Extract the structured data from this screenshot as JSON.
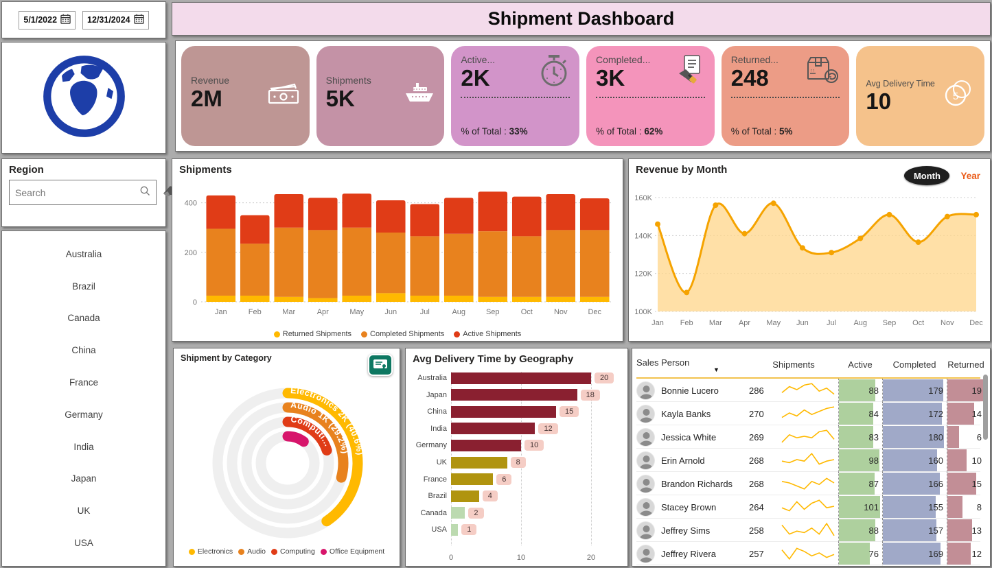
{
  "title": "Shipment Dashboard",
  "filters": {
    "start_date": "5/1/2022",
    "end_date": "12/31/2024"
  },
  "logo_icon": "globe-icon",
  "region_panel": {
    "title": "Region",
    "search_placeholder": "Search",
    "icons": [
      "search-icon",
      "eraser-icon"
    ],
    "countries": [
      "Australia",
      "Brazil",
      "Canada",
      "China",
      "France",
      "Germany",
      "India",
      "Japan",
      "UK",
      "USA"
    ]
  },
  "kpis": [
    {
      "label": "Revenue",
      "value": "2M",
      "icon": "money-icon",
      "bg": "#BE9694",
      "style": "simple"
    },
    {
      "label": "Shipments",
      "value": "5K",
      "icon": "ship-icon",
      "bg": "#C492A6",
      "style": "simple"
    },
    {
      "label": "Active...",
      "value": "2K",
      "icon": "stopwatch-icon",
      "bg": "#D294C9",
      "style": "pct",
      "pct_label": "% of Total :",
      "pct": "33%"
    },
    {
      "label": "Completed...",
      "value": "3K",
      "icon": "deal-icon",
      "bg": "#F494BB",
      "style": "pct",
      "pct_label": "% of Total :",
      "pct": "62%"
    },
    {
      "label": "Returned...",
      "value": "248",
      "icon": "return-box-icon",
      "bg": "#EC9C86",
      "style": "pct",
      "pct_label": "% of Total :",
      "pct": "5%"
    },
    {
      "label": "Avg Delivery Time",
      "value": "10",
      "icon": "coin-icon",
      "bg": "#F5C28B",
      "style": "avg"
    }
  ],
  "chart_data": [
    {
      "id": "shipments",
      "type": "area",
      "title": "Shipments",
      "categories": [
        "Jan",
        "Feb",
        "Mar",
        "Apr",
        "May",
        "Jun",
        "Jul",
        "Aug",
        "Sep",
        "Oct",
        "Nov",
        "Dec"
      ],
      "series": [
        {
          "name": "Returned Shipments",
          "color": "#FFB900",
          "values": [
            25,
            25,
            20,
            15,
            25,
            35,
            25,
            25,
            20,
            20,
            20,
            20
          ]
        },
        {
          "name": "Completed Shipments",
          "color": "#E8821E",
          "values": [
            270,
            210,
            280,
            275,
            275,
            245,
            240,
            250,
            265,
            245,
            270,
            270
          ]
        },
        {
          "name": "Active Shipments",
          "color": "#E03C17",
          "values": [
            135,
            115,
            135,
            130,
            137,
            130,
            130,
            145,
            160,
            160,
            145,
            128
          ]
        }
      ],
      "ylim": [
        0,
        460
      ],
      "yticks": [
        0,
        200,
        400
      ],
      "grid": "dotted-horizontal",
      "legend_position": "bottom"
    },
    {
      "id": "revenue",
      "type": "area",
      "title": "Revenue by Month",
      "toggle": {
        "options": [
          "Month",
          "Year"
        ],
        "selected": "Month",
        "year_color": "#EA5A17"
      },
      "x": [
        "Jan",
        "Feb",
        "Mar",
        "Apr",
        "May",
        "Jun",
        "Jul",
        "Aug",
        "Sep",
        "Oct",
        "Nov",
        "Dec"
      ],
      "values_k": [
        146,
        110,
        156,
        141,
        157,
        133.5,
        131,
        138.5,
        151,
        136.5,
        150,
        151
      ],
      "line_color": "#F5A300",
      "fill_color": "#FFD58A",
      "ylim_k": [
        100,
        160
      ],
      "yticks": [
        "100K",
        "120K",
        "140K",
        "160K"
      ],
      "grid": "dotted-horizontal"
    },
    {
      "id": "category",
      "type": "radial-bar",
      "title": "Shipment by Category",
      "segments": [
        {
          "name": "Electronics",
          "label": "Electronics 2K (40.6%)",
          "pct": 40.6,
          "color": "#FFB900"
        },
        {
          "name": "Audio",
          "label": "Audio 1K (29.2%)",
          "pct": 29.2,
          "color": "#E8821E"
        },
        {
          "name": "Computing",
          "label": "Computi...",
          "pct": 20.0,
          "color": "#E03C17"
        },
        {
          "name": "Office Equipment",
          "label": "",
          "pct": 10.2,
          "color": "#D7156B"
        }
      ],
      "corner_icon": "certificate-icon"
    },
    {
      "id": "geo",
      "type": "bar",
      "title": "Avg Delivery Time by Geography",
      "categories": [
        "Australia",
        "Japan",
        "China",
        "India",
        "Germany",
        "UK",
        "France",
        "Brazil",
        "Canada",
        "USA"
      ],
      "values": [
        20,
        18,
        15,
        12,
        10,
        8,
        6,
        4,
        2,
        1
      ],
      "colors": [
        "#8A2030",
        "#8A2030",
        "#8A2030",
        "#8A2030",
        "#8A2030",
        "#B0940F",
        "#B0940F",
        "#B0940F",
        "#BCDAB0",
        "#BCDAB0"
      ],
      "label_pill_bg": "#F5CDC5",
      "xticks": [
        0,
        10,
        20
      ],
      "xlim": [
        0,
        21
      ]
    },
    {
      "id": "sales",
      "type": "table",
      "columns": [
        "Sales Person",
        "Shipments",
        "Active",
        "Completed",
        "Returned"
      ],
      "bar_colors": {
        "active": "#AED09E",
        "completed": "#A0A9C8",
        "returned": "#C28E96",
        "spark": "#FFB900"
      },
      "rows": [
        {
          "name": "Bonnie Lucero",
          "shipments": 286,
          "active": 88,
          "completed": 179,
          "returned": 19,
          "spark": [
            3,
            7,
            5,
            8,
            9,
            4,
            6,
            2
          ]
        },
        {
          "name": "Kayla Banks",
          "shipments": 270,
          "active": 84,
          "completed": 172,
          "returned": 14,
          "spark": [
            2,
            5,
            3,
            7,
            4,
            6,
            8,
            9
          ]
        },
        {
          "name": "Jessica White",
          "shipments": 269,
          "active": 83,
          "completed": 180,
          "returned": 6,
          "spark": [
            1,
            6,
            4,
            5,
            4,
            8,
            9,
            3
          ]
        },
        {
          "name": "Erin Arnold",
          "shipments": 268,
          "active": 98,
          "completed": 160,
          "returned": 10,
          "spark": [
            4,
            3,
            5,
            4,
            9,
            2,
            4,
            5
          ]
        },
        {
          "name": "Brandon Richards",
          "shipments": 268,
          "active": 87,
          "completed": 166,
          "returned": 15,
          "spark": [
            6,
            5,
            3,
            1,
            6,
            4,
            8,
            5
          ]
        },
        {
          "name": "Stacey Brown",
          "shipments": 264,
          "active": 101,
          "completed": 155,
          "returned": 8,
          "spark": [
            4,
            2,
            8,
            3,
            7,
            9,
            4,
            5
          ]
        },
        {
          "name": "Jeffrey Sims",
          "shipments": 258,
          "active": 88,
          "completed": 157,
          "returned": 13,
          "spark": [
            8,
            2,
            4,
            3,
            6,
            2,
            9,
            1
          ]
        },
        {
          "name": "Jeffrey Rivera",
          "shipments": 257,
          "active": 76,
          "completed": 169,
          "returned": 12,
          "spark": [
            7,
            1,
            8,
            6,
            3,
            5,
            2,
            4
          ]
        }
      ]
    }
  ],
  "colors": {
    "title_bg": "#F3DBEB",
    "page_bg": "#ACACAC",
    "logo_blue": "#1D3EA8",
    "toggle_bg": "#1F1F1F"
  }
}
